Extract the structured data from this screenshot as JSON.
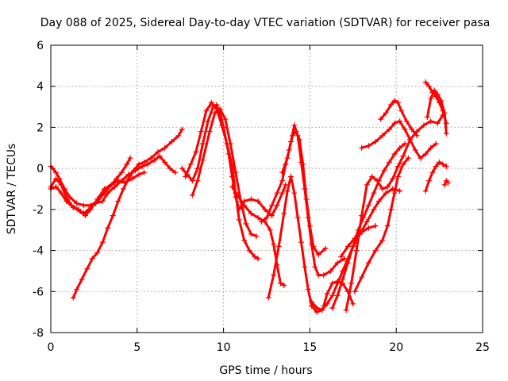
{
  "chart_data": {
    "type": "scatter",
    "title": "Day 088 of 2025, Sidereal Day-to-day VTEC variation (SDTVAR) for receiver pasa",
    "xlabel": "GPS time / hours",
    "ylabel": "SDTVAR / TECUs",
    "xlim": [
      0,
      25
    ],
    "ylim": [
      -8,
      6
    ],
    "xticks": [
      "0",
      "5",
      "10",
      "15",
      "20",
      "25"
    ],
    "yticks": [
      "-8",
      "-6",
      "-4",
      "-2",
      "0",
      "2",
      "4",
      "6"
    ],
    "grid": true,
    "marker": "plus",
    "color": "#ff0000",
    "series": [
      {
        "points": [
          [
            0,
            -0.9
          ],
          [
            0.3,
            -0.5
          ],
          [
            0.6,
            -0.8
          ],
          [
            0.9,
            -1.4
          ],
          [
            1.2,
            -1.8
          ],
          [
            1.6,
            -2.0
          ],
          [
            1.9,
            -2.2
          ],
          [
            2.2,
            -2.0
          ],
          [
            2.6,
            -1.7
          ],
          [
            3.0,
            -1.6
          ],
          [
            3.3,
            -1.2
          ],
          [
            3.7,
            -0.9
          ],
          [
            4.1,
            -0.6
          ],
          [
            4.5,
            -0.3
          ],
          [
            4.9,
            -0.1
          ],
          [
            5.3,
            0.1
          ],
          [
            5.6,
            0.2
          ],
          [
            6.0,
            0.4
          ],
          [
            6.3,
            0.6
          ],
          [
            6.6,
            0.3
          ],
          [
            6.9,
            0.0
          ],
          [
            7.2,
            -0.2
          ]
        ]
      },
      {
        "points": [
          [
            0,
            0.1
          ],
          [
            0.3,
            -0.2
          ],
          [
            0.5,
            -0.5
          ],
          [
            0.8,
            -1.0
          ],
          [
            1.1,
            -1.4
          ],
          [
            1.5,
            -1.7
          ],
          [
            1.9,
            -1.8
          ],
          [
            2.3,
            -1.8
          ],
          [
            2.7,
            -1.6
          ],
          [
            3.1,
            -1.2
          ],
          [
            3.4,
            -0.9
          ],
          [
            3.8,
            -0.5
          ],
          [
            4.1,
            -0.2
          ],
          [
            4.4,
            0.2
          ],
          [
            4.6,
            0.5
          ]
        ]
      },
      {
        "points": [
          [
            0,
            -1.0
          ],
          [
            0.3,
            -0.9
          ],
          [
            0.6,
            -1.2
          ],
          [
            0.9,
            -1.6
          ],
          [
            1.3,
            -1.9
          ],
          [
            1.7,
            -2.1
          ],
          [
            2.0,
            -2.3
          ],
          [
            2.3,
            -2.0
          ],
          [
            2.7,
            -1.5
          ],
          [
            3.1,
            -1.0
          ],
          [
            3.5,
            -0.8
          ],
          [
            3.9,
            -0.6
          ],
          [
            4.3,
            -0.7
          ],
          [
            4.7,
            -0.5
          ],
          [
            5.1,
            -0.3
          ],
          [
            5.4,
            -0.2
          ]
        ]
      },
      {
        "points": [
          [
            1.3,
            -6.3
          ],
          [
            1.5,
            -5.9
          ],
          [
            1.8,
            -5.4
          ],
          [
            2.1,
            -4.9
          ],
          [
            2.4,
            -4.4
          ],
          [
            2.7,
            -4.1
          ],
          [
            3.0,
            -3.6
          ],
          [
            3.3,
            -2.9
          ],
          [
            3.6,
            -2.3
          ],
          [
            3.9,
            -1.6
          ],
          [
            4.2,
            -1.0
          ],
          [
            4.5,
            -0.5
          ],
          [
            4.8,
            -0.1
          ],
          [
            5.1,
            0.2
          ],
          [
            5.4,
            0.3
          ],
          [
            5.8,
            0.5
          ],
          [
            6.2,
            0.8
          ],
          [
            6.6,
            1.0
          ],
          [
            7.0,
            1.3
          ],
          [
            7.4,
            1.6
          ],
          [
            7.6,
            1.9
          ]
        ]
      },
      {
        "points": [
          [
            7.6,
            0.0
          ],
          [
            7.9,
            -0.3
          ],
          [
            8.2,
            -0.6
          ],
          [
            8.5,
            0.0
          ],
          [
            8.8,
            1.2
          ],
          [
            9.1,
            2.3
          ],
          [
            9.4,
            3.0
          ],
          [
            9.6,
            3.1
          ],
          [
            9.8,
            2.7
          ],
          [
            10.0,
            2.0
          ],
          [
            10.3,
            0.7
          ],
          [
            10.5,
            -0.4
          ],
          [
            10.7,
            -1.4
          ],
          [
            10.9,
            -2.0
          ],
          [
            11.2,
            -1.6
          ],
          [
            11.6,
            -1.5
          ],
          [
            12.0,
            -1.6
          ],
          [
            12.4,
            -2.0
          ],
          [
            12.8,
            -2.3
          ],
          [
            13.1,
            -1.8
          ],
          [
            13.4,
            -1.2
          ],
          [
            13.6,
            -0.8
          ]
        ]
      },
      {
        "points": [
          [
            7.8,
            -0.4
          ],
          [
            8.1,
            0.2
          ],
          [
            8.4,
            0.8
          ],
          [
            8.7,
            1.8
          ],
          [
            9.0,
            2.8
          ],
          [
            9.3,
            3.2
          ],
          [
            9.6,
            2.9
          ],
          [
            9.9,
            2.1
          ],
          [
            10.2,
            1.2
          ],
          [
            10.5,
            0.1
          ],
          [
            10.7,
            -1.2
          ],
          [
            10.9,
            -2.5
          ],
          [
            11.2,
            -3.5
          ],
          [
            11.5,
            -4.0
          ],
          [
            11.8,
            -4.3
          ],
          [
            12.0,
            -4.4
          ]
        ]
      },
      {
        "points": [
          [
            8.2,
            -1.3
          ],
          [
            8.5,
            -0.6
          ],
          [
            8.8,
            0.4
          ],
          [
            9.2,
            1.8
          ],
          [
            9.5,
            2.7
          ],
          [
            9.8,
            2.9
          ],
          [
            10.1,
            2.4
          ],
          [
            10.4,
            1.2
          ],
          [
            10.7,
            -0.2
          ],
          [
            11.0,
            -1.6
          ],
          [
            11.3,
            -2.7
          ],
          [
            11.6,
            -3.2
          ],
          [
            11.9,
            -3.3
          ]
        ]
      },
      {
        "points": [
          [
            10.5,
            -0.9
          ],
          [
            10.8,
            -1.3
          ],
          [
            11.2,
            -1.8
          ],
          [
            11.6,
            -2.2
          ],
          [
            12.0,
            -2.4
          ],
          [
            12.4,
            -2.6
          ],
          [
            12.7,
            -3.0
          ],
          [
            12.9,
            -3.7
          ],
          [
            13.1,
            -4.7
          ],
          [
            13.3,
            -5.6
          ],
          [
            13.5,
            -5.7
          ]
        ]
      },
      {
        "points": [
          [
            12.2,
            -2.6
          ],
          [
            12.5,
            -2.4
          ],
          [
            12.8,
            -1.8
          ],
          [
            13.1,
            -1.2
          ],
          [
            13.4,
            -0.6
          ],
          [
            13.6,
            0.2
          ],
          [
            13.8,
            0.9
          ],
          [
            14.0,
            1.6
          ],
          [
            14.2,
            1.8
          ],
          [
            14.4,
            1.4
          ],
          [
            14.6,
            0.2
          ],
          [
            14.8,
            -1.5
          ],
          [
            15.0,
            -2.8
          ],
          [
            15.2,
            -3.8
          ],
          [
            15.5,
            -4.2
          ],
          [
            15.9,
            -3.9
          ]
        ]
      },
      {
        "points": [
          [
            12.6,
            -6.3
          ],
          [
            12.9,
            -5.2
          ],
          [
            13.2,
            -3.8
          ],
          [
            13.5,
            -2.2
          ],
          [
            13.7,
            -1.1
          ],
          [
            13.9,
            -0.4
          ],
          [
            14.1,
            -1.2
          ],
          [
            14.3,
            -2.4
          ],
          [
            14.5,
            -3.6
          ],
          [
            14.7,
            -4.8
          ],
          [
            14.9,
            -5.9
          ],
          [
            15.1,
            -6.7
          ],
          [
            15.4,
            -7.0
          ],
          [
            15.7,
            -6.9
          ]
        ]
      },
      {
        "points": [
          [
            13.4,
            -0.2
          ],
          [
            13.7,
            0.5
          ],
          [
            13.9,
            1.3
          ],
          [
            14.1,
            2.1
          ],
          [
            14.3,
            1.6
          ],
          [
            14.5,
            0.3
          ],
          [
            14.7,
            -1.0
          ],
          [
            14.9,
            -2.4
          ],
          [
            15.1,
            -3.7
          ],
          [
            15.3,
            -4.8
          ],
          [
            15.5,
            -5.2
          ],
          [
            15.8,
            -5.2
          ],
          [
            16.2,
            -5.0
          ],
          [
            16.6,
            -4.6
          ],
          [
            17.0,
            -4.4
          ]
        ]
      },
      {
        "points": [
          [
            15.1,
            -6.5
          ],
          [
            15.4,
            -6.8
          ],
          [
            15.7,
            -6.9
          ],
          [
            16.0,
            -6.6
          ],
          [
            16.3,
            -6.2
          ],
          [
            16.6,
            -5.6
          ],
          [
            16.9,
            -5.0
          ],
          [
            17.2,
            -4.4
          ],
          [
            17.5,
            -3.8
          ],
          [
            17.9,
            -3.2
          ],
          [
            18.3,
            -2.6
          ],
          [
            18.7,
            -2.0
          ],
          [
            19.0,
            -1.6
          ],
          [
            19.4,
            -1.2
          ],
          [
            19.8,
            -1.0
          ],
          [
            20.2,
            -1.1
          ]
        ]
      },
      {
        "points": [
          [
            16.3,
            -6.8
          ],
          [
            16.6,
            -6.2
          ],
          [
            16.9,
            -5.4
          ],
          [
            17.2,
            -4.6
          ],
          [
            17.5,
            -3.8
          ],
          [
            17.8,
            -3.0
          ],
          [
            18.1,
            -2.4
          ],
          [
            18.4,
            -1.8
          ],
          [
            18.7,
            -1.2
          ],
          [
            19.0,
            -0.6
          ],
          [
            19.3,
            -0.1
          ],
          [
            19.6,
            0.3
          ],
          [
            19.9,
            0.7
          ],
          [
            20.2,
            1.0
          ],
          [
            20.5,
            1.2
          ]
        ]
      },
      {
        "points": [
          [
            17.5,
            -6.6
          ],
          [
            17.2,
            -6.0
          ],
          [
            16.9,
            -5.6
          ],
          [
            16.6,
            -5.5
          ],
          [
            16.3,
            -5.6
          ],
          [
            16.0,
            -6.1
          ],
          [
            15.8,
            -6.7
          ]
        ]
      },
      {
        "points": [
          [
            16.8,
            -4.3
          ],
          [
            17.2,
            -3.8
          ],
          [
            17.6,
            -3.4
          ],
          [
            18.0,
            -3.1
          ],
          [
            18.4,
            -2.9
          ],
          [
            18.8,
            -2.8
          ]
        ]
      },
      {
        "points": [
          [
            17.1,
            -6.9
          ],
          [
            17.4,
            -5.6
          ],
          [
            17.7,
            -4.0
          ],
          [
            18.0,
            -2.3
          ],
          [
            18.3,
            -0.8
          ],
          [
            18.6,
            -0.4
          ],
          [
            18.9,
            -0.6
          ],
          [
            19.2,
            -1.0
          ],
          [
            19.5,
            -0.9
          ],
          [
            19.8,
            -0.5
          ],
          [
            20.1,
            0.1
          ],
          [
            20.4,
            0.6
          ],
          [
            20.8,
            1.4
          ],
          [
            21.2,
            1.8
          ],
          [
            21.6,
            2.1
          ],
          [
            22.0,
            2.3
          ],
          [
            22.4,
            2.2
          ],
          [
            22.7,
            2.6
          ]
        ]
      },
      {
        "points": [
          [
            17.6,
            -6.0
          ],
          [
            18.0,
            -5.3
          ],
          [
            18.4,
            -4.6
          ],
          [
            18.8,
            -4.0
          ],
          [
            19.2,
            -3.5
          ],
          [
            19.5,
            -2.8
          ],
          [
            19.7,
            -2.0
          ],
          [
            19.9,
            -1.2
          ],
          [
            20.1,
            -0.4
          ],
          [
            20.4,
            0.2
          ],
          [
            20.7,
            0.5
          ]
        ]
      },
      {
        "points": [
          [
            18.0,
            1.0
          ],
          [
            18.4,
            1.1
          ],
          [
            18.8,
            1.3
          ],
          [
            19.2,
            1.6
          ],
          [
            19.6,
            1.9
          ],
          [
            19.9,
            2.2
          ],
          [
            20.2,
            2.3
          ],
          [
            20.5,
            1.9
          ],
          [
            20.8,
            1.4
          ],
          [
            21.1,
            0.9
          ],
          [
            21.4,
            0.5
          ],
          [
            21.7,
            0.7
          ],
          [
            22.0,
            1.0
          ],
          [
            22.3,
            1.2
          ]
        ]
      },
      {
        "points": [
          [
            19.1,
            2.4
          ],
          [
            19.4,
            2.7
          ],
          [
            19.7,
            3.1
          ],
          [
            19.9,
            3.3
          ],
          [
            20.1,
            3.2
          ],
          [
            20.3,
            2.8
          ],
          [
            20.6,
            2.3
          ],
          [
            20.9,
            1.9
          ],
          [
            21.2,
            1.6
          ]
        ]
      },
      {
        "points": [
          [
            21.7,
            4.2
          ],
          [
            21.9,
            4.0
          ],
          [
            22.1,
            3.7
          ],
          [
            22.3,
            3.5
          ],
          [
            22.5,
            3.2
          ],
          [
            22.7,
            2.8
          ],
          [
            22.9,
            2.2
          ]
        ]
      },
      {
        "points": [
          [
            21.8,
            2.5
          ],
          [
            22.0,
            3.4
          ],
          [
            22.2,
            3.8
          ],
          [
            22.4,
            3.6
          ],
          [
            22.6,
            3.3
          ],
          [
            22.8,
            2.7
          ],
          [
            22.9,
            1.7
          ]
        ]
      },
      {
        "points": [
          [
            21.7,
            -1.1
          ],
          [
            21.9,
            -0.6
          ],
          [
            22.1,
            -0.2
          ],
          [
            22.3,
            0.1
          ],
          [
            22.5,
            0.3
          ],
          [
            22.7,
            0.2
          ],
          [
            22.9,
            0.1
          ]
        ]
      },
      {
        "points": [
          [
            22.8,
            -0.8
          ],
          [
            22.9,
            -0.6
          ],
          [
            23.0,
            -0.7
          ]
        ]
      }
    ]
  }
}
